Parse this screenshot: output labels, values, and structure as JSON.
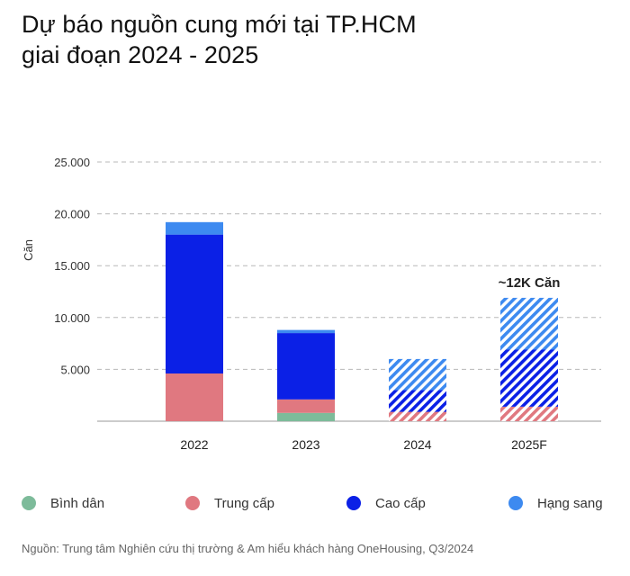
{
  "title_line1": "Dự báo nguồn cung mới tại TP.HCM",
  "title_line2": "giai đoạn 2024 - 2025",
  "source": "Nguồn: Trung tâm Nghiên cứu thị trường & Am hiểu khách hàng OneHousing, Q3/2024",
  "colors": {
    "Bình dân": "#7dbb9a",
    "Trung cấp": "#e07880",
    "Cao cấp": "#0b20e6",
    "Hạng sang": "#3d8af0"
  },
  "chart_data": {
    "type": "bar",
    "stacked": true,
    "categories": [
      "2022",
      "2023",
      "2024",
      "2025F"
    ],
    "forecast_categories": [
      "2024",
      "2025F"
    ],
    "series": [
      {
        "name": "Bình dân",
        "values": [
          0,
          800,
          0,
          0
        ]
      },
      {
        "name": "Trung cấp",
        "values": [
          4600,
          1300,
          900,
          1400
        ]
      },
      {
        "name": "Cao cấp",
        "values": [
          13400,
          6400,
          2100,
          5500
        ]
      },
      {
        "name": "Hạng sang",
        "values": [
          1200,
          300,
          3000,
          5000
        ]
      }
    ],
    "ylabel": "Căn",
    "ylim": [
      0,
      25000
    ],
    "yticks": [
      5000,
      10000,
      15000,
      20000,
      25000
    ],
    "ytick_labels": [
      "5.000",
      "10.000",
      "15.000",
      "20.000",
      "25.000"
    ],
    "grid": true,
    "annotations": [
      {
        "category": "2025F",
        "text": "~12K Căn"
      }
    ],
    "legend": "bottom"
  }
}
